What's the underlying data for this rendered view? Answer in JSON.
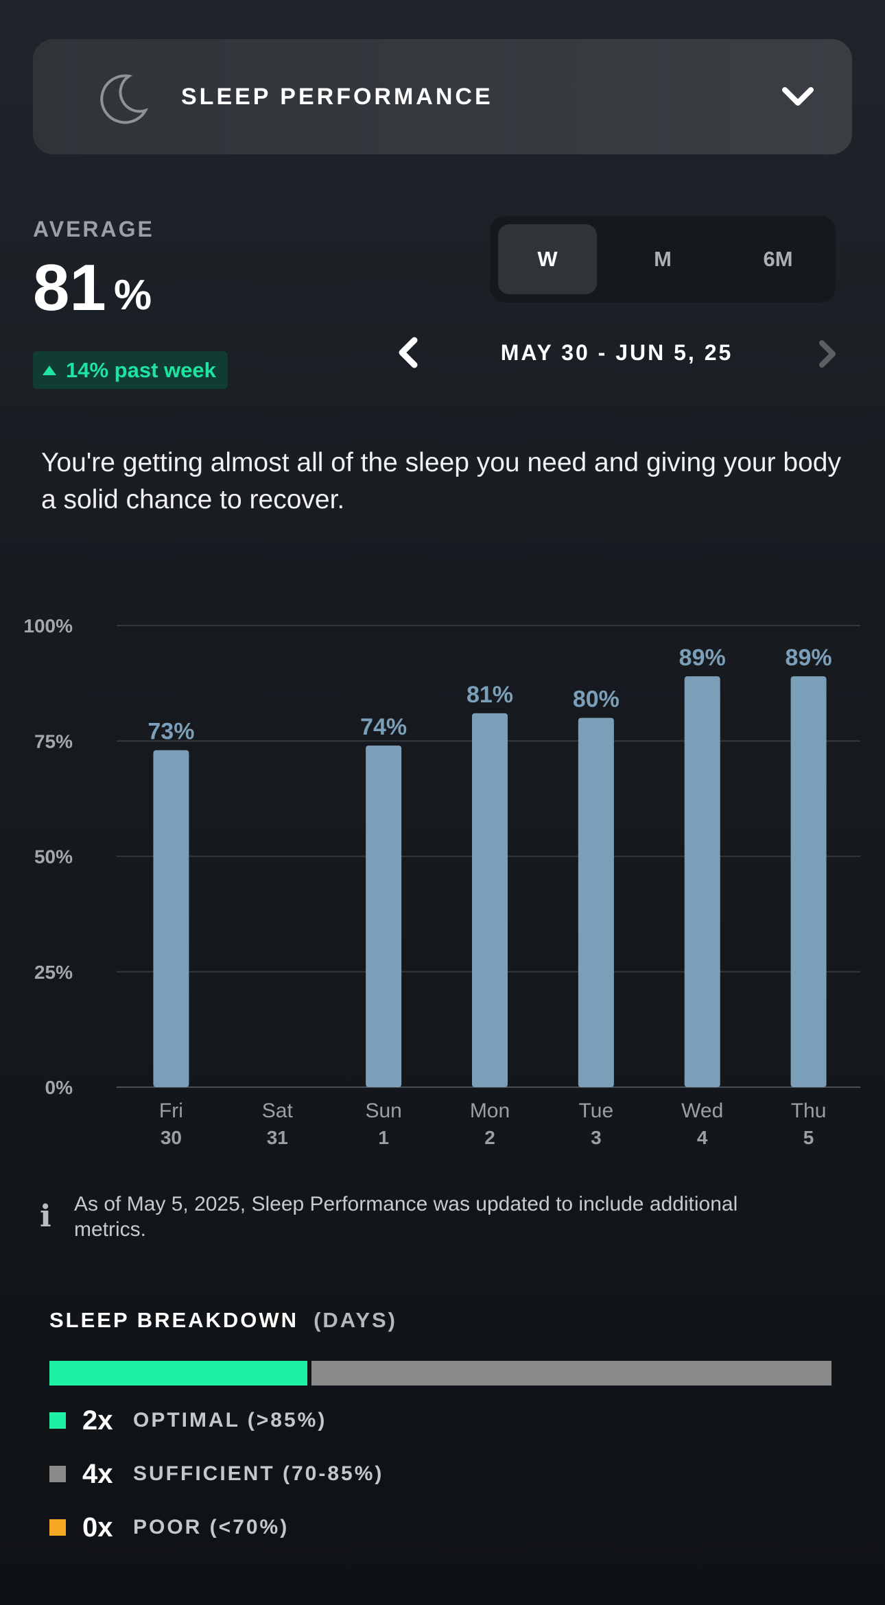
{
  "header": {
    "title": "SLEEP PERFORMANCE",
    "icon": "moon-icon",
    "dropdown_icon": "chevron-down-icon"
  },
  "average": {
    "label": "AVERAGE",
    "value": "81",
    "unit": "%",
    "trend_text": "14% past week",
    "trend_color": "#1fe3a0"
  },
  "range_tabs": [
    {
      "label": "W",
      "active": true
    },
    {
      "label": "M",
      "active": false
    },
    {
      "label": "6M",
      "active": false
    }
  ],
  "date_nav": {
    "range": "MAY 30 - JUN 5, 25"
  },
  "summary": "You're getting almost all of the sleep you need and giving your body a solid chance to recover.",
  "chart_data": {
    "type": "bar",
    "categories": [
      "Fri 30",
      "Sat 31",
      "Sun 1",
      "Mon 2",
      "Tue 3",
      "Wed 4",
      "Thu 5"
    ],
    "day_names": [
      "Fri",
      "Sat",
      "Sun",
      "Mon",
      "Tue",
      "Wed",
      "Thu"
    ],
    "day_numbers": [
      "30",
      "31",
      "1",
      "2",
      "3",
      "4",
      "5"
    ],
    "values": [
      73,
      null,
      74,
      81,
      80,
      89,
      89
    ],
    "data_labels": [
      "73%",
      "",
      "74%",
      "81%",
      "80%",
      "89%",
      "89%"
    ],
    "yticks": [
      "0%",
      "25%",
      "50%",
      "75%",
      "100%"
    ],
    "ylim": [
      0,
      100
    ],
    "bar_color": "#7b9fb8",
    "grid": true
  },
  "info_note": "As of May 5, 2025, Sleep Performance was updated to include additional metrics.",
  "breakdown": {
    "title": "SLEEP BREAKDOWN",
    "subtitle": "(DAYS)",
    "items": [
      {
        "count": "2x",
        "label": "OPTIMAL (>85%)",
        "color": "#1ef0a4",
        "days": 2
      },
      {
        "count": "4x",
        "label": "SUFFICIENT (70-85%)",
        "color": "#8a8a8a",
        "days": 4
      },
      {
        "count": "0x",
        "label": "POOR (<70%)",
        "color": "#f5a623",
        "days": 0
      }
    ]
  }
}
